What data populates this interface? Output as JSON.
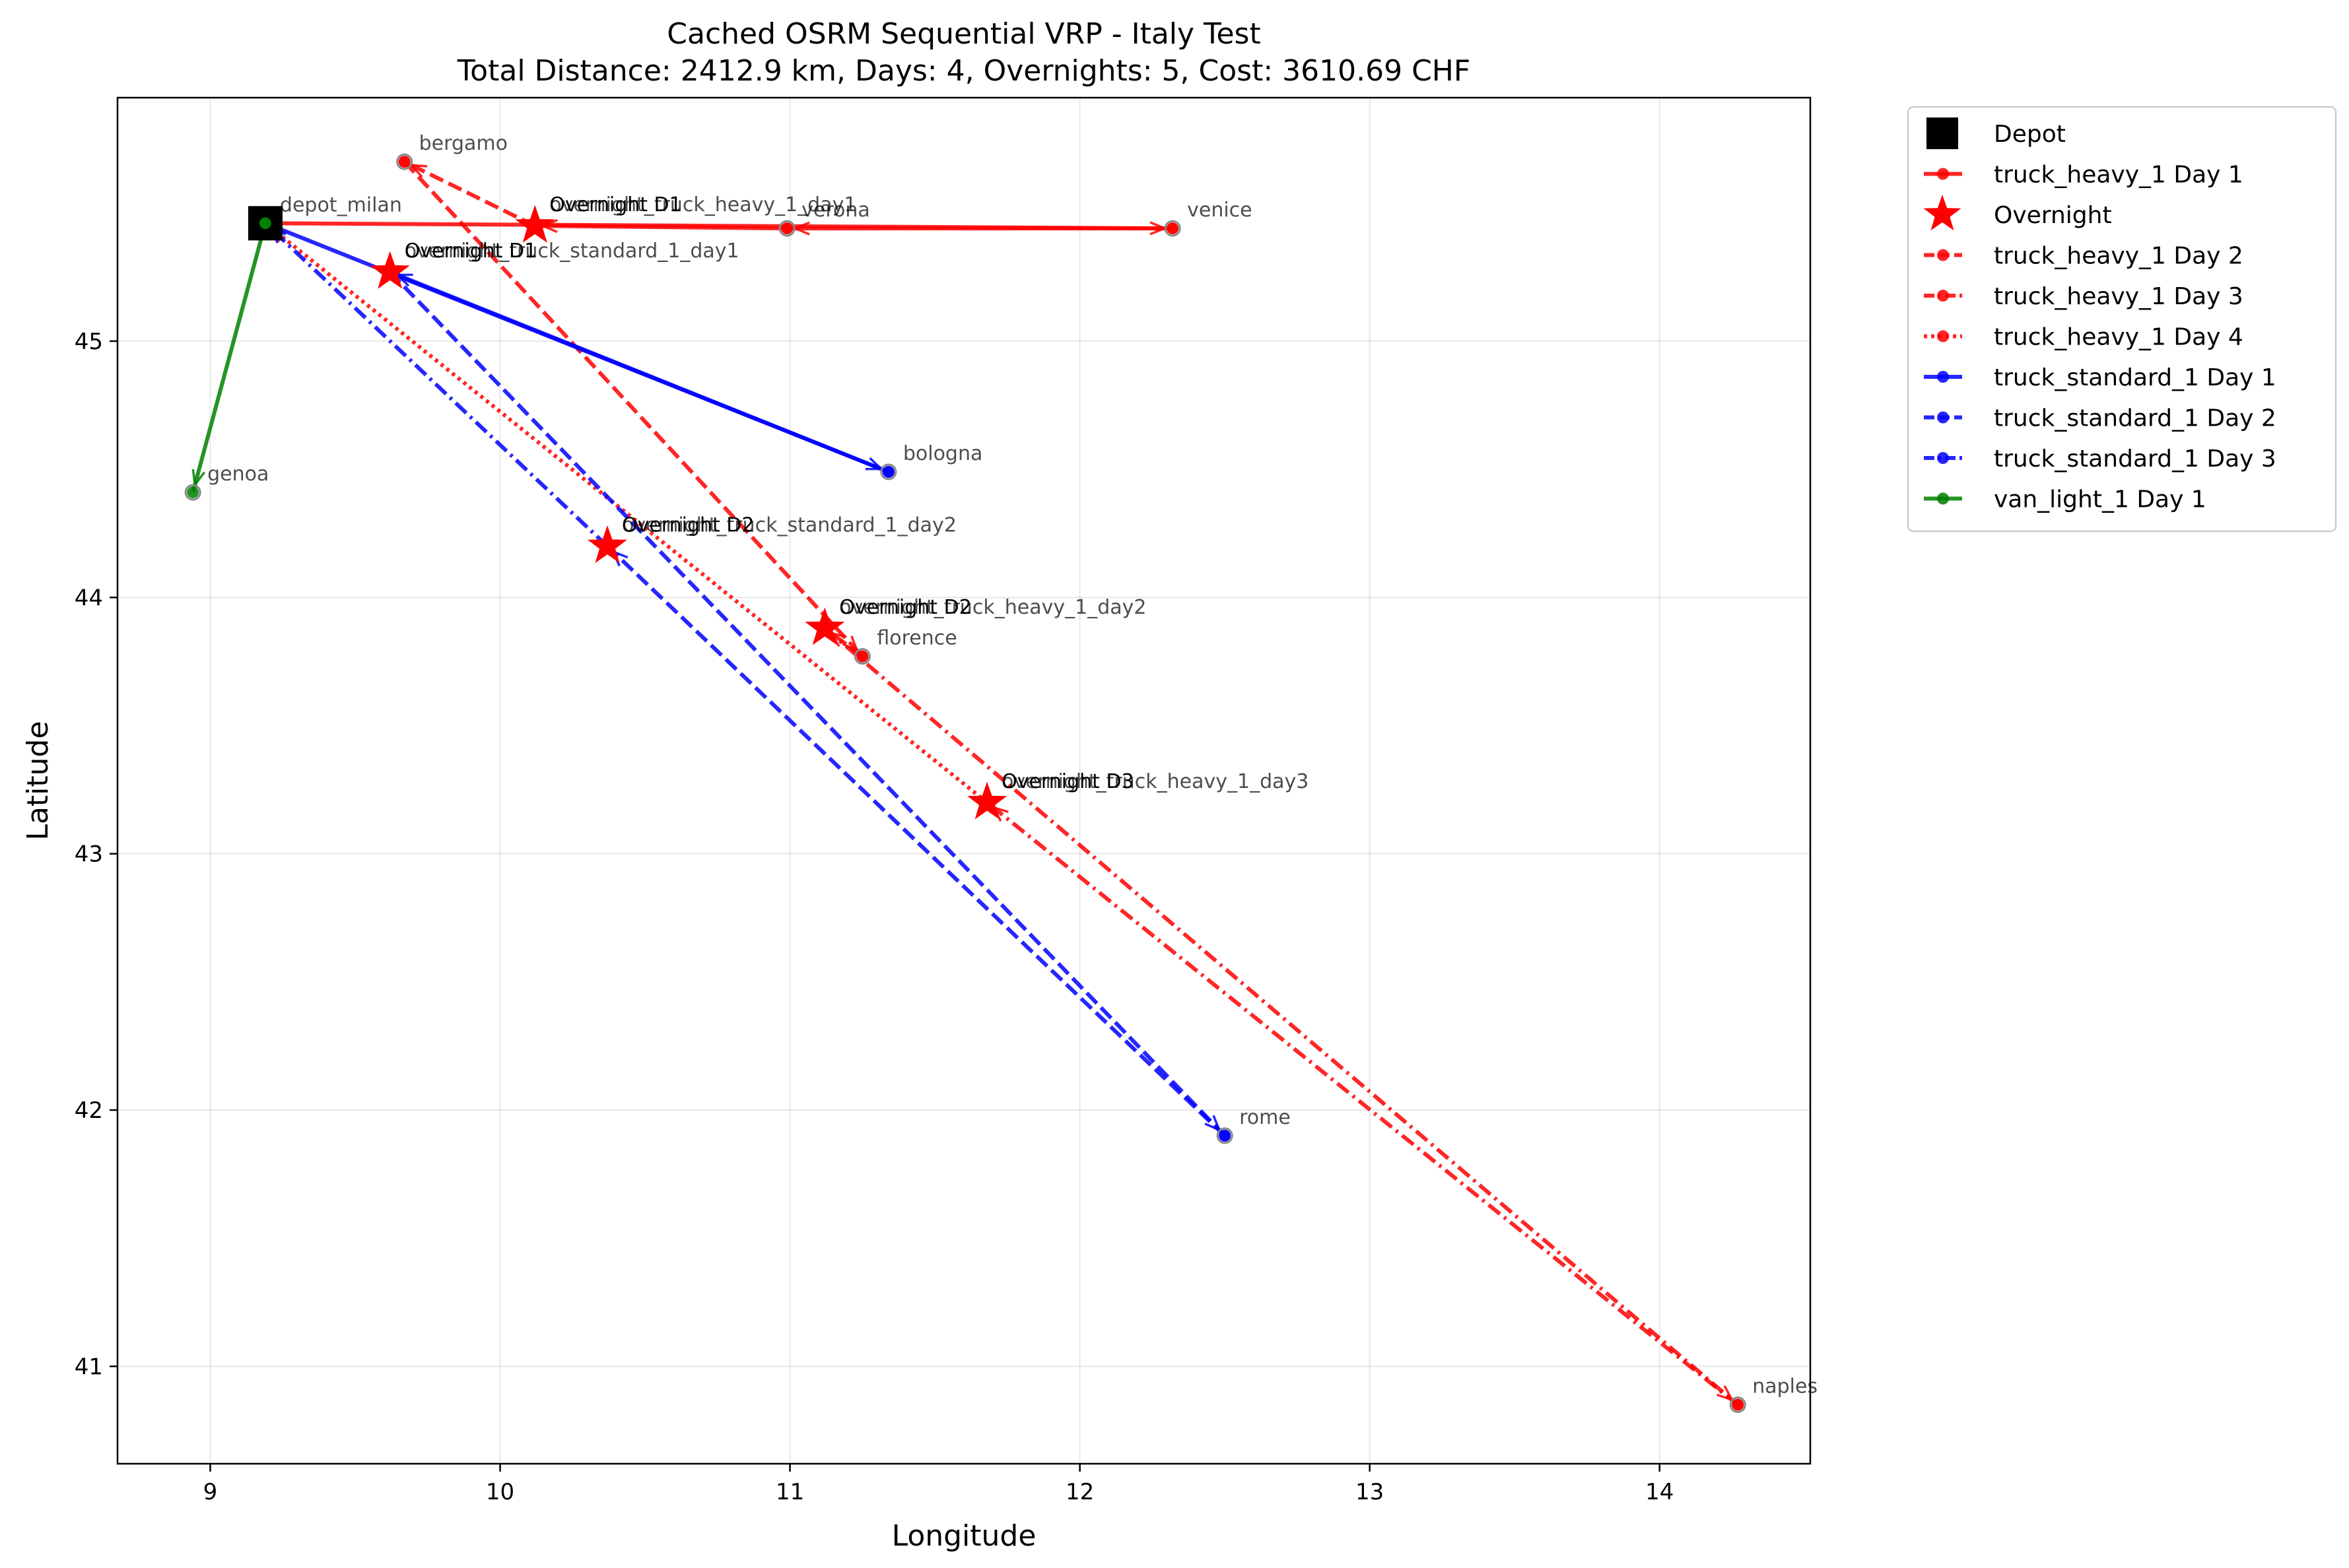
{
  "chart_data": {
    "type": "scatter",
    "title_line1": "Cached OSRM Sequential VRP - Italy Test",
    "title_line2": "Total Distance: 2412.9 km, Days: 4, Overnights: 5, Cost: 3610.69 CHF",
    "xlabel": "Longitude",
    "ylabel": "Latitude",
    "xlim": [
      8.68,
      14.52
    ],
    "ylim": [
      40.62,
      45.95
    ],
    "xticks": [
      9,
      10,
      11,
      12,
      13,
      14
    ],
    "yticks": [
      41,
      42,
      43,
      44,
      45
    ],
    "grid": true,
    "legend_placement": "outside-upper-right",
    "colors": {
      "heavy": "#ff0000",
      "standard": "#0000ff",
      "van": "#008000",
      "depot": "#000000"
    },
    "depot": {
      "name": "depot_milan",
      "lon": 9.19,
      "lat": 45.46
    },
    "cities": [
      {
        "name": "bergamo",
        "lon": 9.67,
        "lat": 45.7
      },
      {
        "name": "verona",
        "lon": 10.99,
        "lat": 45.44
      },
      {
        "name": "venice",
        "lon": 12.32,
        "lat": 45.44
      },
      {
        "name": "bologna",
        "lon": 11.34,
        "lat": 44.49
      },
      {
        "name": "genoa",
        "lon": 8.94,
        "lat": 44.41
      },
      {
        "name": "florence",
        "lon": 11.25,
        "lat": 43.77
      },
      {
        "name": "rome",
        "lon": 12.5,
        "lat": 41.9
      },
      {
        "name": "naples",
        "lon": 14.27,
        "lat": 40.85
      }
    ],
    "overnights": [
      {
        "short": "Overnight D1",
        "long": "overnight_truck_heavy_1_day1",
        "lon": 10.12,
        "lat": 45.45
      },
      {
        "short": "Overnight D1",
        "long": "overnight_truck_standard_1_day1",
        "lon": 9.62,
        "lat": 45.27
      },
      {
        "short": "Overnight D2",
        "long": "overnight_truck_standard_1_day2",
        "lon": 10.37,
        "lat": 44.2
      },
      {
        "short": "Overnight D2",
        "long": "overnight_truck_heavy_1_day2",
        "lon": 11.12,
        "lat": 43.88
      },
      {
        "short": "Overnight D3",
        "long": "overnight_truck_heavy_1_day3",
        "lon": 11.68,
        "lat": 43.2
      }
    ],
    "series": [
      {
        "name": "truck_heavy_1 Day 1",
        "color": "#ff0000",
        "dash": "solid",
        "points": [
          [
            9.19,
            45.46
          ],
          [
            12.32,
            45.44
          ],
          [
            10.99,
            45.44
          ],
          [
            10.12,
            45.45
          ]
        ]
      },
      {
        "name": "truck_heavy_1 Day 2",
        "color": "#ff0000",
        "dash": "dashed",
        "points": [
          [
            10.12,
            45.45
          ],
          [
            9.67,
            45.7
          ],
          [
            11.25,
            43.77
          ],
          [
            11.12,
            43.88
          ]
        ]
      },
      {
        "name": "truck_heavy_1 Day 3",
        "color": "#ff0000",
        "dashdot": true,
        "dash": "dashdot",
        "points": [
          [
            11.12,
            43.88
          ],
          [
            14.27,
            40.85
          ],
          [
            11.68,
            43.2
          ]
        ]
      },
      {
        "name": "truck_heavy_1 Day 4",
        "color": "#ff0000",
        "dash": "dotted",
        "points": [
          [
            11.68,
            43.2
          ],
          [
            9.19,
            45.46
          ]
        ]
      },
      {
        "name": "truck_standard_1 Day 1",
        "color": "#0000ff",
        "dash": "solid",
        "points": [
          [
            9.19,
            45.46
          ],
          [
            11.34,
            44.49
          ],
          [
            9.62,
            45.27
          ]
        ]
      },
      {
        "name": "truck_standard_1 Day 2",
        "color": "#0000ff",
        "dash": "dashed",
        "points": [
          [
            9.62,
            45.27
          ],
          [
            12.5,
            41.9
          ],
          [
            10.37,
            44.2
          ]
        ]
      },
      {
        "name": "truck_standard_1 Day 3",
        "color": "#0000ff",
        "dash": "dashdot",
        "points": [
          [
            10.37,
            44.2
          ],
          [
            9.19,
            45.46
          ]
        ]
      },
      {
        "name": "van_light_1 Day 1",
        "color": "#008000",
        "dash": "solid",
        "points": [
          [
            9.19,
            45.46
          ],
          [
            8.94,
            44.41
          ]
        ]
      }
    ],
    "legend": [
      {
        "label": "Depot",
        "kind": "depot"
      },
      {
        "label": "truck_heavy_1 Day 1",
        "kind": "line",
        "series": 0
      },
      {
        "label": "Overnight",
        "kind": "star"
      },
      {
        "label": "truck_heavy_1 Day 2",
        "kind": "line",
        "series": 1
      },
      {
        "label": "truck_heavy_1 Day 3",
        "kind": "line",
        "series": 2
      },
      {
        "label": "truck_heavy_1 Day 4",
        "kind": "line",
        "series": 3
      },
      {
        "label": "truck_standard_1 Day 1",
        "kind": "line",
        "series": 4
      },
      {
        "label": "truck_standard_1 Day 2",
        "kind": "line",
        "series": 5
      },
      {
        "label": "truck_standard_1 Day 3",
        "kind": "line",
        "series": 6
      },
      {
        "label": "van_light_1 Day 1",
        "kind": "line",
        "series": 7
      }
    ]
  }
}
